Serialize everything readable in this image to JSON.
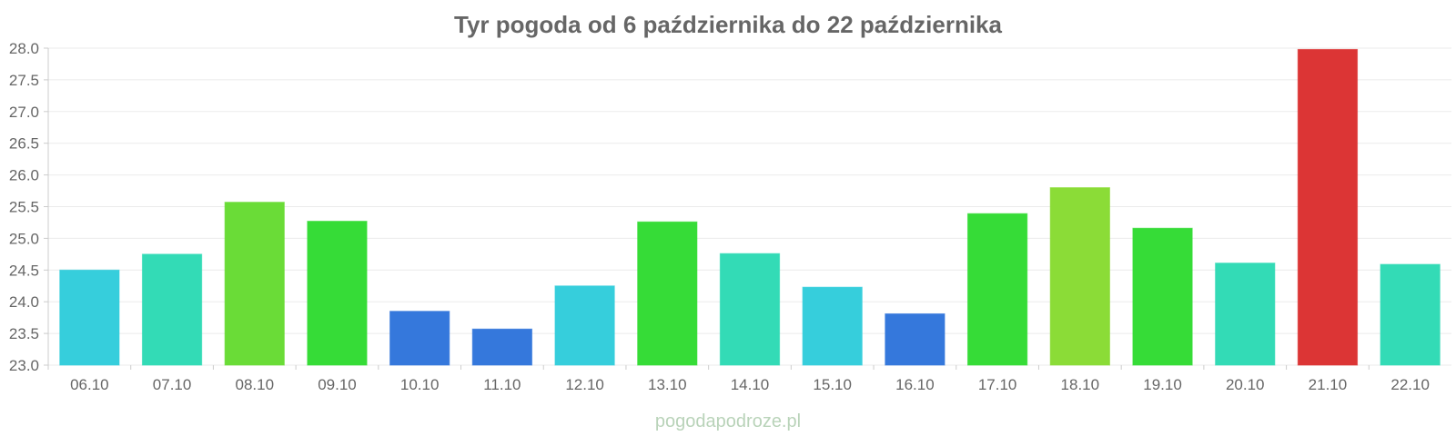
{
  "chart_data": {
    "type": "bar",
    "title": "Tyr pogoda od 6 października do 22 października",
    "xlabel": "",
    "ylabel": "",
    "categories": [
      "06.10",
      "07.10",
      "08.10",
      "09.10",
      "10.10",
      "11.10",
      "12.10",
      "13.10",
      "14.10",
      "15.10",
      "16.10",
      "17.10",
      "18.10",
      "19.10",
      "20.10",
      "21.10",
      "22.10"
    ],
    "values": [
      24.5,
      24.75,
      25.57,
      25.27,
      23.85,
      23.57,
      24.25,
      25.26,
      24.76,
      24.23,
      23.81,
      25.39,
      25.8,
      25.16,
      24.61,
      27.98,
      24.59
    ],
    "colors": [
      "#36cedc",
      "#33dbb6",
      "#6adc37",
      "#36dc37",
      "#3578dc",
      "#3578dc",
      "#36cedc",
      "#36dc37",
      "#33dbb6",
      "#36cedc",
      "#3578dc",
      "#36dc37",
      "#8bdc37",
      "#36dc37",
      "#33dbb6",
      "#dc3535",
      "#33dbb6"
    ],
    "ylim": [
      23.0,
      28.0
    ],
    "yticks": [
      "23.0",
      "23.5",
      "24.0",
      "24.5",
      "25.0",
      "25.5",
      "26.0",
      "26.5",
      "27.0",
      "27.5",
      "28.0"
    ],
    "grid": true,
    "legend": "none"
  },
  "watermark": "pogodapodroze.pl"
}
